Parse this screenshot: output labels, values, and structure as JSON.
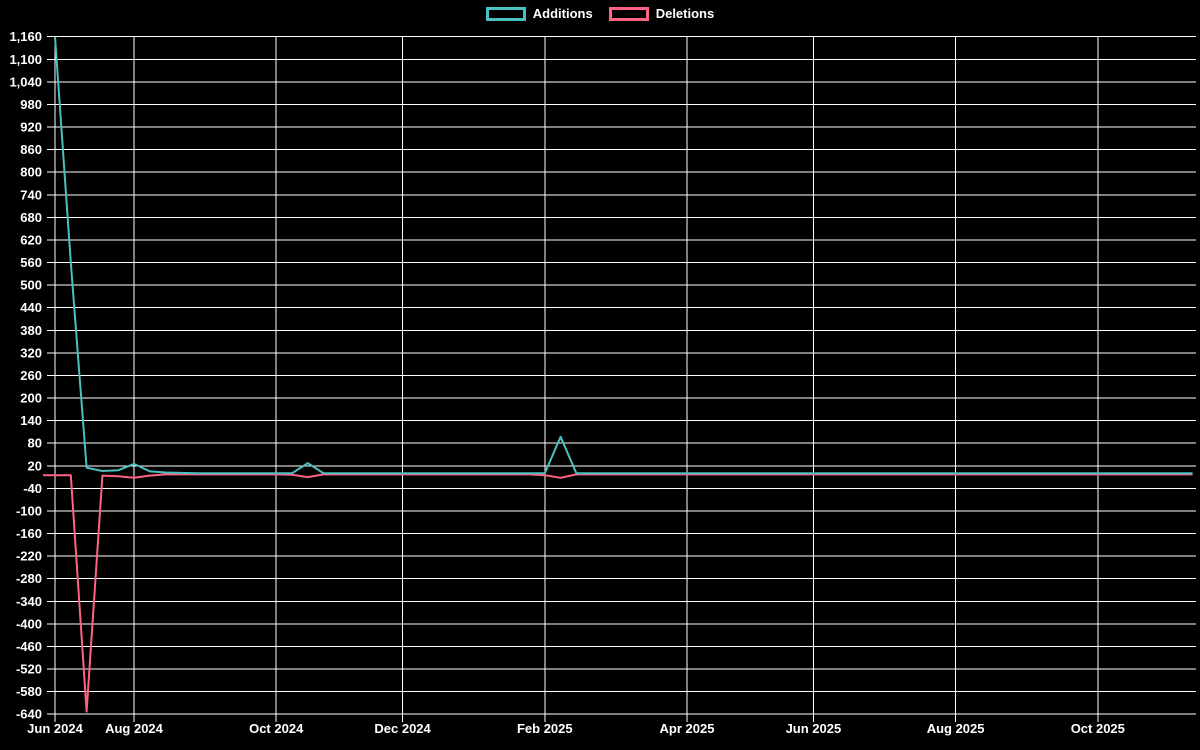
{
  "chart_data": {
    "type": "line",
    "title": "",
    "xlabel": "",
    "ylabel": "",
    "x_resolution": "weekly",
    "legend_position": "top",
    "grid": true,
    "background_color": "#000000",
    "grid_color": "#ffffff",
    "axis_text_color": "#ffffff",
    "ylim": [
      -640,
      1160
    ],
    "y_step": 60,
    "y_tick_labels": [
      "1,160",
      "1,100",
      "1,040",
      "980",
      "920",
      "860",
      "800",
      "740",
      "680",
      "620",
      "560",
      "500",
      "440",
      "380",
      "320",
      "260",
      "200",
      "140",
      "80",
      "20",
      "-40",
      "-100",
      "-160",
      "-220",
      "-280",
      "-340",
      "-400",
      "-460",
      "-520",
      "-580",
      "-640"
    ],
    "x_tick_labels": [
      "Jun 2024",
      "Aug 2024",
      "Oct 2024",
      "Dec 2024",
      "Feb 2025",
      "Apr 2025",
      "Jun 2025",
      "Aug 2025",
      "Oct 2025"
    ],
    "series": [
      {
        "name": "Additions",
        "color": "#4bc0c0",
        "values": [
          1160,
          560,
          15,
          6,
          8,
          25,
          5,
          2,
          1,
          0,
          0,
          0,
          0,
          0,
          0,
          0,
          27,
          0,
          0,
          0,
          0,
          0,
          0,
          0,
          0,
          0,
          0,
          0,
          0,
          0,
          0,
          0,
          97,
          0,
          0,
          0,
          0,
          0,
          0,
          0,
          0,
          0,
          0,
          0,
          0,
          0,
          0,
          0,
          0,
          0,
          0,
          0,
          0,
          0,
          0,
          0,
          0,
          0,
          0,
          0,
          0,
          0,
          0,
          0,
          0,
          0,
          0,
          0,
          0,
          0,
          0,
          0,
          0
        ]
      },
      {
        "name": "Deletions",
        "color": "#ff6384",
        "values": [
          -5,
          -5,
          -633,
          -6,
          -8,
          -12,
          -6,
          -3,
          -3,
          -3,
          -3,
          -3,
          -3,
          -3,
          -3,
          -4,
          -10,
          -3,
          -3,
          -3,
          -3,
          -3,
          -3,
          -3,
          -3,
          -3,
          -3,
          -3,
          -3,
          -3,
          -3,
          -5,
          -12,
          -3,
          -3,
          -3,
          -3,
          -3,
          -3,
          -3,
          -3,
          -3,
          -3,
          -3,
          -3,
          -3,
          -3,
          -3,
          -3,
          -3,
          -3,
          -3,
          -3,
          -3,
          -3,
          -3,
          -3,
          -3,
          -3,
          -3,
          -3,
          -3,
          -3,
          -3,
          -3,
          -3,
          -3,
          -3,
          -3,
          -3,
          -3,
          -3,
          -3
        ]
      }
    ]
  }
}
